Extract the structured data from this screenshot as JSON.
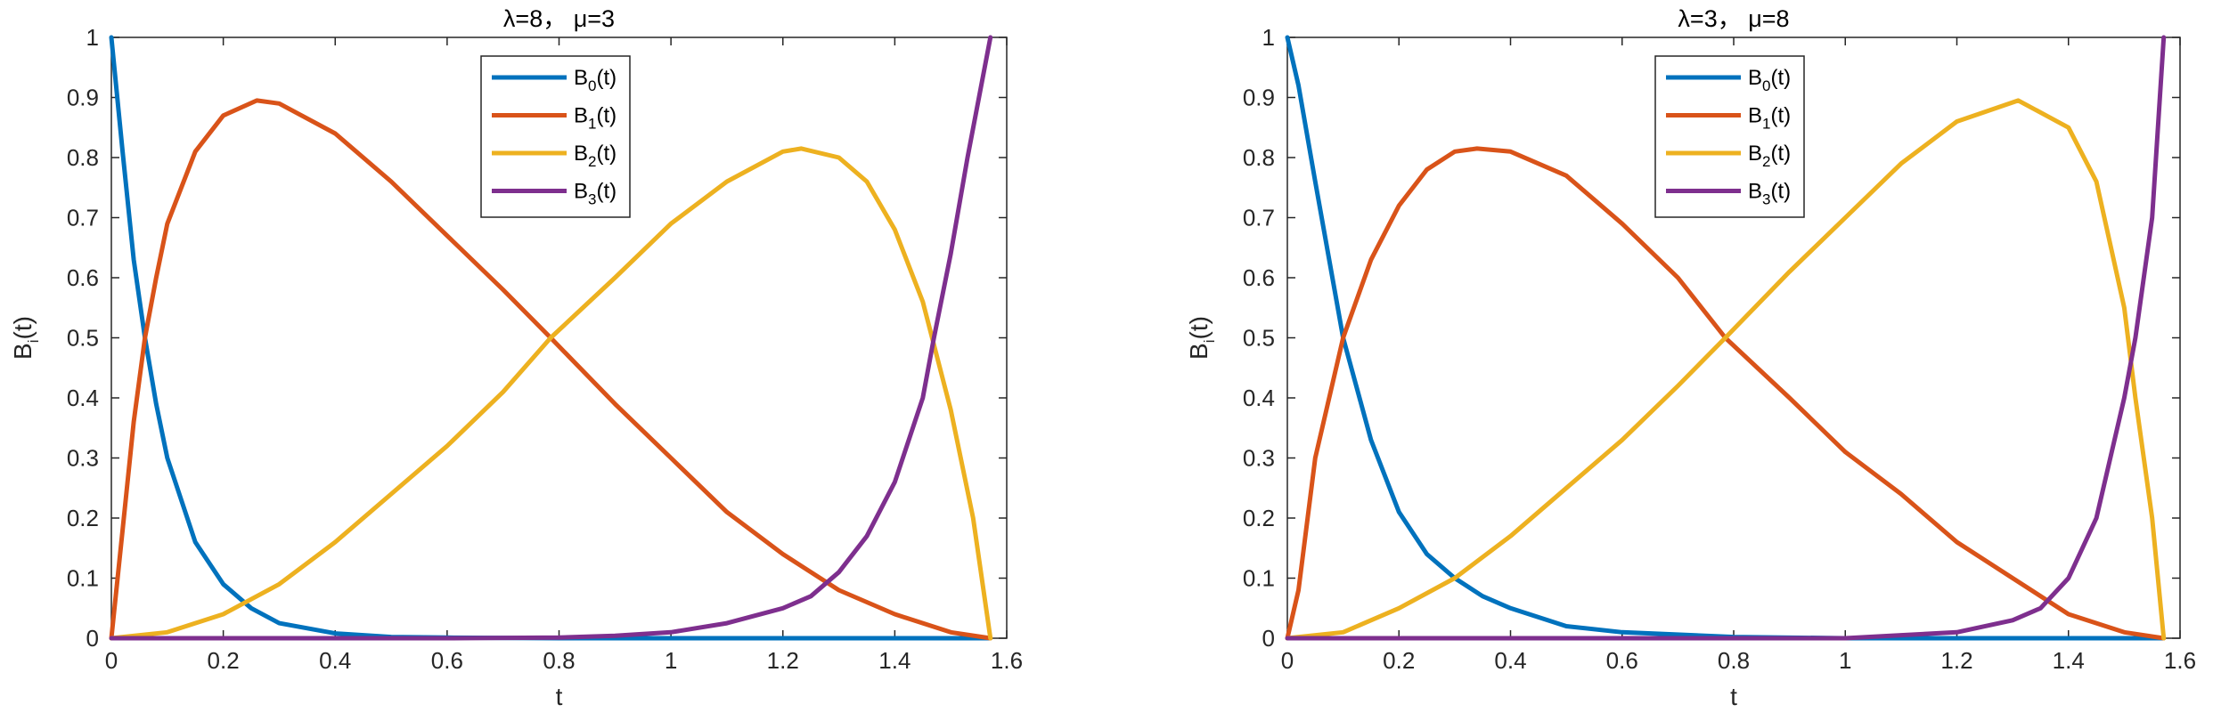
{
  "chart_data": [
    {
      "type": "line",
      "title": "λ=8， μ=3",
      "xlabel": "t",
      "ylabel": "B_i(t)",
      "ylabel_main": "B",
      "ylabel_sub": "i",
      "ylabel_suffix": "(t)",
      "xlim": [
        0,
        1.6
      ],
      "ylim": [
        0,
        1
      ],
      "xticks": [
        0,
        0.2,
        0.4,
        0.6,
        0.8,
        1,
        1.2,
        1.4,
        1.6
      ],
      "xtick_labels": [
        "0",
        "0.2",
        "0.4",
        "0.6",
        "0.8",
        "1",
        "1.2",
        "1.4",
        "1.6"
      ],
      "yticks": [
        0,
        0.1,
        0.2,
        0.3,
        0.4,
        0.5,
        0.6,
        0.7,
        0.8,
        0.9,
        1
      ],
      "ytick_labels": [
        "0",
        "0.1",
        "0.2",
        "0.3",
        "0.4",
        "0.5",
        "0.6",
        "0.7",
        "0.8",
        "0.9",
        "1"
      ],
      "legend_position": "top-center",
      "grid": false,
      "series": [
        {
          "name": "B_0(t)",
          "label_main": "B",
          "label_sub": "0",
          "label_suffix": "(t)",
          "color": "#0072BD",
          "x": [
            0,
            0.02,
            0.04,
            0.06,
            0.08,
            0.1,
            0.15,
            0.2,
            0.25,
            0.3,
            0.4,
            0.5,
            0.6,
            0.8,
            1.0,
            1.2,
            1.4,
            1.5708
          ],
          "y": [
            1,
            0.81,
            0.63,
            0.5,
            0.39,
            0.3,
            0.16,
            0.09,
            0.05,
            0.025,
            0.008,
            0.002,
            0.001,
            0,
            0,
            0,
            0,
            0
          ]
        },
        {
          "name": "B_1(t)",
          "label_main": "B",
          "label_sub": "1",
          "label_suffix": "(t)",
          "color": "#D95319",
          "x": [
            0,
            0.02,
            0.04,
            0.06,
            0.08,
            0.1,
            0.15,
            0.2,
            0.26,
            0.3,
            0.4,
            0.5,
            0.6,
            0.7,
            0.785,
            0.9,
            1.0,
            1.1,
            1.2,
            1.3,
            1.4,
            1.5,
            1.5708
          ],
          "y": [
            0,
            0.18,
            0.36,
            0.5,
            0.6,
            0.69,
            0.81,
            0.87,
            0.895,
            0.89,
            0.84,
            0.76,
            0.67,
            0.58,
            0.5,
            0.39,
            0.3,
            0.21,
            0.14,
            0.08,
            0.04,
            0.01,
            0
          ]
        },
        {
          "name": "B_2(t)",
          "label_main": "B",
          "label_sub": "2",
          "label_suffix": "(t)",
          "color": "#EDB120",
          "x": [
            0,
            0.1,
            0.2,
            0.3,
            0.4,
            0.5,
            0.6,
            0.7,
            0.785,
            0.9,
            1.0,
            1.1,
            1.2,
            1.233,
            1.3,
            1.35,
            1.4,
            1.45,
            1.5,
            1.54,
            1.5708
          ],
          "y": [
            0,
            0.01,
            0.04,
            0.09,
            0.16,
            0.24,
            0.32,
            0.41,
            0.5,
            0.6,
            0.69,
            0.76,
            0.81,
            0.815,
            0.8,
            0.76,
            0.68,
            0.56,
            0.38,
            0.2,
            0
          ]
        },
        {
          "name": "B_3(t)",
          "label_main": "B",
          "label_sub": "3",
          "label_suffix": "(t)",
          "color": "#7E2F8E",
          "x": [
            0,
            0.2,
            0.4,
            0.6,
            0.8,
            0.9,
            1.0,
            1.1,
            1.2,
            1.25,
            1.3,
            1.35,
            1.4,
            1.45,
            1.47,
            1.5,
            1.53,
            1.5708
          ],
          "y": [
            0,
            0,
            0,
            0,
            0.001,
            0.004,
            0.01,
            0.025,
            0.05,
            0.07,
            0.11,
            0.17,
            0.26,
            0.4,
            0.5,
            0.64,
            0.8,
            1
          ]
        }
      ]
    },
    {
      "type": "line",
      "title": "λ=3， μ=8",
      "xlabel": "t",
      "ylabel": "B_i(t)",
      "ylabel_main": "B",
      "ylabel_sub": "i",
      "ylabel_suffix": "(t)",
      "xlim": [
        0,
        1.6
      ],
      "ylim": [
        0,
        1
      ],
      "xticks": [
        0,
        0.2,
        0.4,
        0.6,
        0.8,
        1,
        1.2,
        1.4,
        1.6
      ],
      "xtick_labels": [
        "0",
        "0.2",
        "0.4",
        "0.6",
        "0.8",
        "1",
        "1.2",
        "1.4",
        "1.6"
      ],
      "yticks": [
        0,
        0.1,
        0.2,
        0.3,
        0.4,
        0.5,
        0.6,
        0.7,
        0.8,
        0.9,
        1
      ],
      "ytick_labels": [
        "0",
        "0.1",
        "0.2",
        "0.3",
        "0.4",
        "0.5",
        "0.6",
        "0.7",
        "0.8",
        "0.9",
        "1"
      ],
      "legend_position": "top-center",
      "grid": false,
      "series": [
        {
          "name": "B_0(t)",
          "label_main": "B",
          "label_sub": "0",
          "label_suffix": "(t)",
          "color": "#0072BD",
          "x": [
            0,
            0.02,
            0.05,
            0.1,
            0.15,
            0.2,
            0.25,
            0.3,
            0.35,
            0.4,
            0.5,
            0.6,
            0.8,
            1.0,
            1.2,
            1.4,
            1.5708
          ],
          "y": [
            1,
            0.92,
            0.76,
            0.5,
            0.33,
            0.21,
            0.14,
            0.1,
            0.07,
            0.05,
            0.02,
            0.01,
            0.002,
            0,
            0,
            0,
            0
          ]
        },
        {
          "name": "B_1(t)",
          "label_main": "B",
          "label_sub": "1",
          "label_suffix": "(t)",
          "color": "#D95319",
          "x": [
            0,
            0.02,
            0.05,
            0.1,
            0.15,
            0.2,
            0.25,
            0.3,
            0.34,
            0.4,
            0.5,
            0.6,
            0.7,
            0.785,
            0.9,
            1.0,
            1.1,
            1.2,
            1.3,
            1.4,
            1.5,
            1.5708
          ],
          "y": [
            0,
            0.08,
            0.3,
            0.5,
            0.63,
            0.72,
            0.78,
            0.81,
            0.815,
            0.81,
            0.77,
            0.69,
            0.6,
            0.5,
            0.4,
            0.31,
            0.24,
            0.16,
            0.1,
            0.04,
            0.01,
            0
          ]
        },
        {
          "name": "B_2(t)",
          "label_main": "B",
          "label_sub": "2",
          "label_suffix": "(t)",
          "color": "#EDB120",
          "x": [
            0,
            0.1,
            0.2,
            0.3,
            0.4,
            0.5,
            0.6,
            0.7,
            0.785,
            0.9,
            1.0,
            1.1,
            1.2,
            1.31,
            1.4,
            1.45,
            1.5,
            1.52,
            1.55,
            1.5708
          ],
          "y": [
            0,
            0.01,
            0.05,
            0.1,
            0.17,
            0.25,
            0.33,
            0.42,
            0.5,
            0.61,
            0.7,
            0.79,
            0.86,
            0.895,
            0.85,
            0.76,
            0.55,
            0.4,
            0.2,
            0
          ]
        },
        {
          "name": "B_3(t)",
          "label_main": "B",
          "label_sub": "3",
          "label_suffix": "(t)",
          "color": "#7E2F8E",
          "x": [
            0,
            0.4,
            0.8,
            1.0,
            1.1,
            1.2,
            1.3,
            1.35,
            1.4,
            1.45,
            1.5,
            1.52,
            1.55,
            1.5708
          ],
          "y": [
            0,
            0,
            0,
            0,
            0.005,
            0.01,
            0.03,
            0.05,
            0.1,
            0.2,
            0.4,
            0.5,
            0.7,
            1
          ]
        }
      ]
    }
  ]
}
